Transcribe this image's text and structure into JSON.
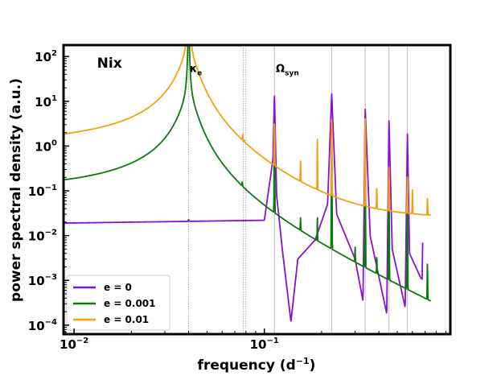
{
  "chart_data": {
    "type": "line",
    "title": "",
    "xlabel": "frequency (d",
    "xlabel_sup": "−1",
    "xlabel_end": ")",
    "ylabel": "power spectral density (a.u.)",
    "xscale": "log",
    "yscale": "log",
    "xlim": [
      0.0088,
      0.95
    ],
    "ylim": [
      6.3e-05,
      180
    ],
    "x_ticks": [
      {
        "value": 0.01,
        "base": "10",
        "exp": "−2"
      },
      {
        "value": 0.1,
        "base": "10",
        "exp": "−1"
      }
    ],
    "y_ticks": [
      {
        "value": 100,
        "base": "10",
        "exp": "2"
      },
      {
        "value": 10,
        "base": "10",
        "exp": "1"
      },
      {
        "value": 1,
        "base": "10",
        "exp": "0"
      },
      {
        "value": 0.1,
        "base": "10",
        "exp": "−1"
      },
      {
        "value": 0.01,
        "base": "10",
        "exp": "−2"
      },
      {
        "value": 0.001,
        "base": "10",
        "exp": "−3"
      },
      {
        "value": 0.0001,
        "base": "10",
        "exp": "−4"
      }
    ],
    "vlines_dotted": [
      0.04,
      0.0775,
      0.08
    ],
    "vlines_solid": [
      0.113,
      0.226,
      0.339,
      0.452,
      0.565
    ],
    "annotations": [
      {
        "id": "nix",
        "text": "Nix",
        "x": 0.0132,
        "y": 56
      },
      {
        "id": "kappa",
        "text": "κ",
        "sub": "e",
        "x": 0.0405,
        "y": 45
      },
      {
        "id": "omega",
        "text": "Ω",
        "sub": "syn",
        "x": 0.115,
        "y": 45
      }
    ],
    "legend": {
      "position": "lower-left",
      "entries": [
        {
          "label": "e = 0",
          "color": "#8b0fd2"
        },
        {
          "label": "e = 0.001",
          "color": "#0a7a0a"
        },
        {
          "label": "e = 0.01",
          "color": "#f5a00f"
        }
      ]
    },
    "series": [
      {
        "name": "e = 0",
        "color": "#8b0fd2",
        "base": {
          "type": "points",
          "points": [
            [
              0.0088,
              0.019
            ],
            [
              0.1,
              0.022
            ],
            [
              0.111,
              0.5
            ],
            [
              0.113,
              15
            ],
            [
              0.116,
              0.08
            ],
            [
              0.125,
              0.004
            ],
            [
              0.138,
              0.00012
            ],
            [
              0.15,
              0.003
            ],
            [
              0.185,
              0.008
            ],
            [
              0.215,
              0.05
            ],
            [
              0.226,
              15
            ],
            [
              0.24,
              0.03
            ],
            [
              0.3,
              0.003
            ],
            [
              0.33,
              0.00035
            ],
            [
              0.339,
              7
            ],
            [
              0.36,
              0.01
            ],
            [
              0.44,
              0.00018
            ],
            [
              0.452,
              4
            ],
            [
              0.47,
              0.005
            ],
            [
              0.55,
              0.00025
            ],
            [
              0.565,
              2
            ],
            [
              0.58,
              0.004
            ],
            [
              0.66,
              0.0012
            ],
            [
              0.68,
              0.001
            ]
          ]
        },
        "features": [
          {
            "type": "line",
            "x": 0.04,
            "w": 0.03,
            "a": 0.002
          },
          {
            "type": "line",
            "x": 0.68,
            "w": 0.02,
            "a": 0.006
          },
          {
            "type": "line",
            "x": 0.72,
            "w": 0.02,
            "a": 0.005
          }
        ]
      },
      {
        "name": "e = 0.001",
        "color": "#0a7a0a",
        "base": {
          "type": "curve",
          "level": 0.0162,
          "slope": -2,
          "floor": 0
        },
        "features": [
          {
            "type": "lor",
            "x": 0.04,
            "g": 1.85e-05,
            "a": 8
          },
          {
            "type": "line",
            "x": 0.0765,
            "w": 0.02,
            "a": 0.03
          },
          {
            "type": "line",
            "x": 0.113,
            "w": 0.02,
            "a": 2.5
          },
          {
            "type": "line",
            "x": 0.155,
            "w": 0.02,
            "a": 0.012
          },
          {
            "type": "line",
            "x": 0.19,
            "w": 0.015,
            "a": 0.02
          },
          {
            "type": "line",
            "x": 0.226,
            "w": 0.02,
            "a": 1
          },
          {
            "type": "line",
            "x": 0.3,
            "w": 0.02,
            "a": 0.003
          },
          {
            "type": "line",
            "x": 0.339,
            "w": 0.02,
            "a": 0.3
          },
          {
            "type": "line",
            "x": 0.39,
            "w": 0.02,
            "a": 0.002
          },
          {
            "type": "line",
            "x": 0.452,
            "w": 0.02,
            "a": 0.1
          },
          {
            "type": "line",
            "x": 0.565,
            "w": 0.02,
            "a": 0.05
          },
          {
            "type": "line",
            "x": 0.72,
            "w": 0.02,
            "a": 0.002
          }
        ]
      },
      {
        "name": "e = 0.01",
        "color": "#f5a00f",
        "base": {
          "type": "curve",
          "level": 0.145,
          "slope": -2,
          "floor": 0.025
        },
        "features": [
          {
            "type": "lor",
            "x": 0.04,
            "g": 2e-05,
            "a": 80
          },
          {
            "type": "line",
            "x": 0.077,
            "w": 0.02,
            "a": 0.5
          },
          {
            "type": "line",
            "x": 0.0785,
            "w": 0.02,
            "a": 0.1
          },
          {
            "type": "line",
            "x": 0.113,
            "w": 0.02,
            "a": 3
          },
          {
            "type": "line",
            "x": 0.155,
            "w": 0.02,
            "a": 0.3
          },
          {
            "type": "line",
            "x": 0.19,
            "w": 0.015,
            "a": 1.5
          },
          {
            "type": "line",
            "x": 0.226,
            "w": 0.02,
            "a": 4
          },
          {
            "type": "line",
            "x": 0.339,
            "w": 0.02,
            "a": 4
          },
          {
            "type": "line",
            "x": 0.39,
            "w": 0.02,
            "a": 0.08
          },
          {
            "type": "line",
            "x": 0.452,
            "w": 0.02,
            "a": 0.3
          },
          {
            "type": "line",
            "x": 0.565,
            "w": 0.02,
            "a": 0.2
          },
          {
            "type": "line",
            "x": 0.6,
            "w": 0.02,
            "a": 0.08
          },
          {
            "type": "line",
            "x": 0.72,
            "w": 0.02,
            "a": 0.04
          }
        ]
      }
    ]
  }
}
